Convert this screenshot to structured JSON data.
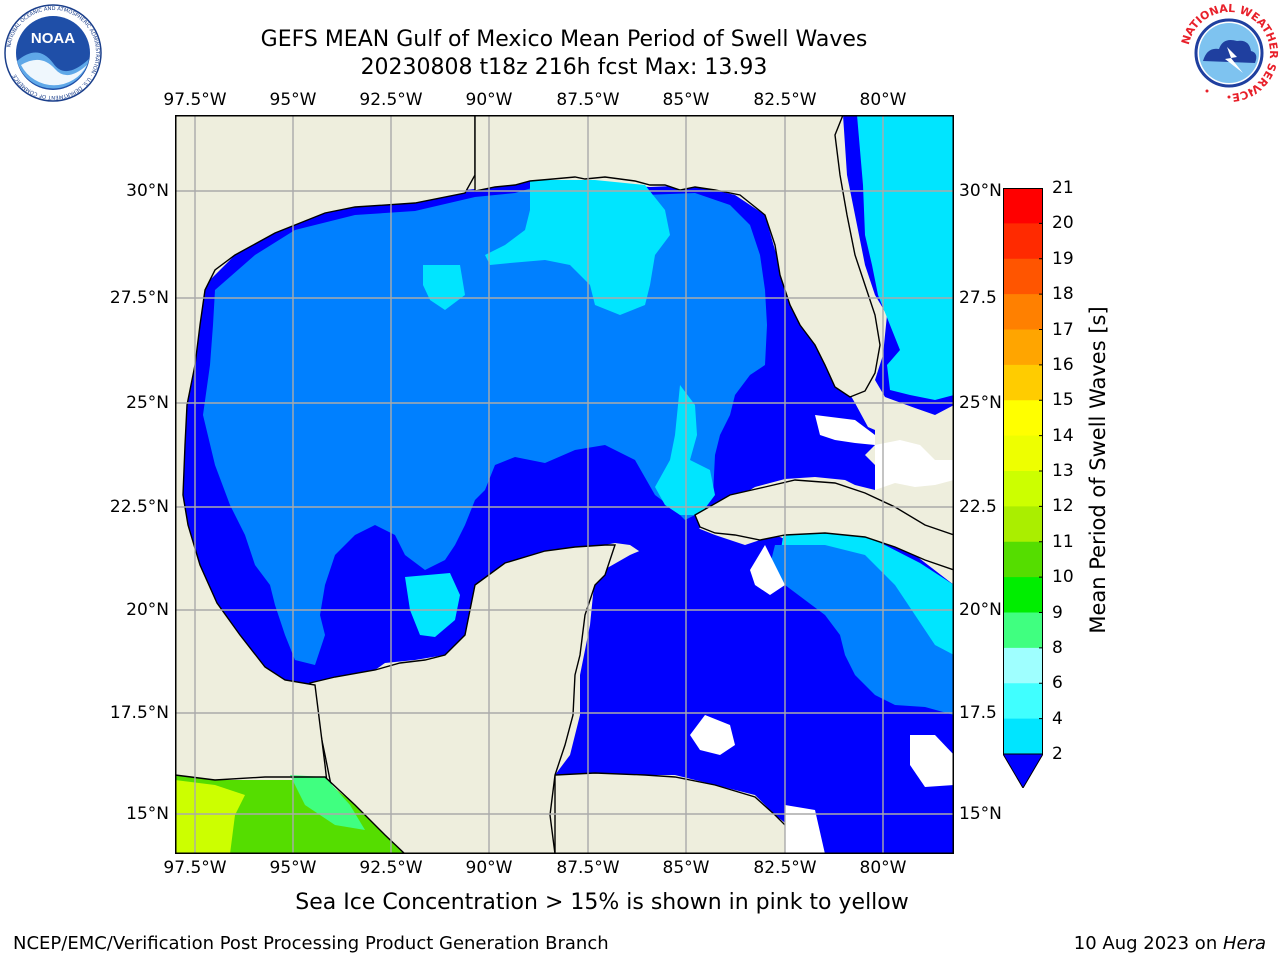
{
  "title": {
    "line1": "GEFS MEAN Gulf of Mexico Mean Period of Swell Waves",
    "line2": "20230808 t18z 216h fcst   Max: 13.93"
  },
  "map": {
    "lon_ticks": [
      "97.5°W",
      "95°W",
      "92.5°W",
      "90°W",
      "87.5°W",
      "85°W",
      "82.5°W",
      "80°W"
    ],
    "lat_ticks": [
      "30°N",
      "27.5°N",
      "25°N",
      "22.5°N",
      "20°N",
      "17.5°N",
      "15°N"
    ],
    "lat_ticks_right": [
      "30°N",
      "27.5",
      "25°N",
      "22.5",
      "20°N",
      "17.5",
      "15°N"
    ],
    "land_color": "#EEEEDD",
    "grid_color": "#aaaaaa"
  },
  "colorbar": {
    "title": "Mean Period of Swell Waves [s]",
    "labels": [
      "2",
      "4",
      "6",
      "8",
      "9",
      "10",
      "11",
      "12",
      "13",
      "14",
      "15",
      "16",
      "17",
      "18",
      "19",
      "20",
      "21"
    ],
    "colors": [
      "#0000FF",
      "#0080FF",
      "#00E5FF",
      "#40FFFF",
      "#9FFFFF",
      "#40FF80",
      "#00EE00",
      "#55DD00",
      "#AAEE00",
      "#CCFF00",
      "#EEFF00",
      "#FFFF00",
      "#FFCC00",
      "#FFA500",
      "#FF8000",
      "#FF5500",
      "#FF2A00",
      "#FF0000"
    ]
  },
  "logos": {
    "left_text": "NOAA",
    "left_ring_text": "NATIONAL OCEANIC AND ATMOSPHERIC ADMINISTRATION · U.S. DEPARTMENT OF COMMERCE",
    "right_ring_text": "NATIONAL WEATHER SERVICE"
  },
  "footer": {
    "note": "Sea Ice Concentration > 15% is shown in pink to yellow",
    "left": "NCEP/EMC/Verification Post Processing Product Generation Branch",
    "date": "10 Aug 2023 on ",
    "host": "Hera"
  }
}
